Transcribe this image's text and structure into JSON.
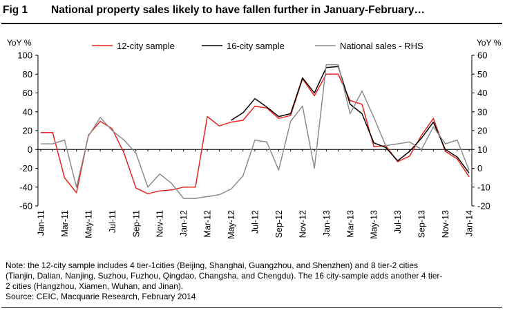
{
  "figure": {
    "number": "Fig 1",
    "title": "National property sales likely to have fallen further in January-February…"
  },
  "notes": [
    "Note: the 12-city sample includes 4 tier-1cities (Beijing, Shanghai, Guangzhou, and Shenzhen) and 8 tier-2 cities",
    "(Tianjin, Dalian, Nanjing, Suzhou, Fuzhou, Qingdao, Changsha, and Chengdu). The 16 city-sample adds another 4 tier-",
    "2 cities (Hangzhou, Xiamen, Wuhan, and Jinan).",
    "Source: CEIC, Macquarie Research, February 2014"
  ],
  "chart_data": {
    "type": "line",
    "title": "National property sales likely to have fallen further in January-February…",
    "x": [
      "Jan-11",
      "Feb-11",
      "Mar-11",
      "Apr-11",
      "May-11",
      "Jun-11",
      "Jul-11",
      "Aug-11",
      "Sep-11",
      "Oct-11",
      "Nov-11",
      "Dec-11",
      "Jan-12",
      "Feb-12",
      "Mar-12",
      "Apr-12",
      "May-12",
      "Jun-12",
      "Jul-12",
      "Aug-12",
      "Sep-12",
      "Oct-12",
      "Nov-12",
      "Dec-12",
      "Jan-13",
      "Feb-13",
      "Mar-13",
      "Apr-13",
      "May-13",
      "Jun-13",
      "Jul-13",
      "Aug-13",
      "Sep-13",
      "Oct-13",
      "Nov-13",
      "Dec-13",
      "Jan-14"
    ],
    "tick_labels": [
      "Jan-11",
      "Mar-11",
      "May-11",
      "Jul-11",
      "Sep-11",
      "Nov-11",
      "Jan-12",
      "Mar-12",
      "May-12",
      "Jul-12",
      "Sep-12",
      "Nov-12",
      "Jan-13",
      "Mar-13",
      "May-13",
      "Jul-13",
      "Sep-13",
      "Nov-13",
      "Jan-14"
    ],
    "ylabel_left": "YoY %",
    "ylabel_right": "YoY %",
    "ylim_left": [
      -60,
      100
    ],
    "yticks_left": [
      -60,
      -40,
      -20,
      0,
      20,
      40,
      60,
      80,
      100
    ],
    "ylim_right": [
      -20,
      60
    ],
    "yticks_right": [
      -20,
      -10,
      0,
      10,
      20,
      30,
      40,
      50,
      60
    ],
    "grid": false,
    "legend_position": "top",
    "series": [
      {
        "name": "12-city sample",
        "axis": "left",
        "color": "#e8231f",
        "values": [
          18,
          18,
          -30,
          -46,
          15,
          30,
          22,
          -4,
          -41,
          -47,
          -44,
          -43,
          -40,
          -40,
          35,
          25,
          29,
          31,
          46,
          44,
          33,
          36,
          75,
          57,
          80,
          80,
          52,
          48,
          3,
          4,
          -13,
          -7,
          15,
          33,
          -2,
          -10,
          -29
        ]
      },
      {
        "name": "16-city sample",
        "axis": "left",
        "color": "#000000",
        "values": [
          null,
          null,
          null,
          null,
          null,
          null,
          null,
          null,
          null,
          null,
          null,
          null,
          null,
          null,
          null,
          null,
          31,
          39,
          54,
          45,
          35,
          38,
          76,
          60,
          87,
          88,
          48,
          38,
          7,
          2,
          -12,
          -2,
          12,
          29,
          0,
          -8,
          -25
        ]
      },
      {
        "name": "National sales - RHS",
        "axis": "right",
        "color": "#8c8c8c",
        "values": [
          13,
          13,
          15,
          -10,
          17,
          27,
          20,
          15,
          8,
          -10,
          -3,
          -8,
          -16,
          -16,
          -15,
          -14,
          -11,
          -4,
          15,
          14,
          -1,
          25,
          33,
          0,
          55,
          55,
          29,
          41,
          27,
          12,
          13,
          14,
          10,
          22,
          13,
          15,
          -1
        ]
      }
    ]
  }
}
